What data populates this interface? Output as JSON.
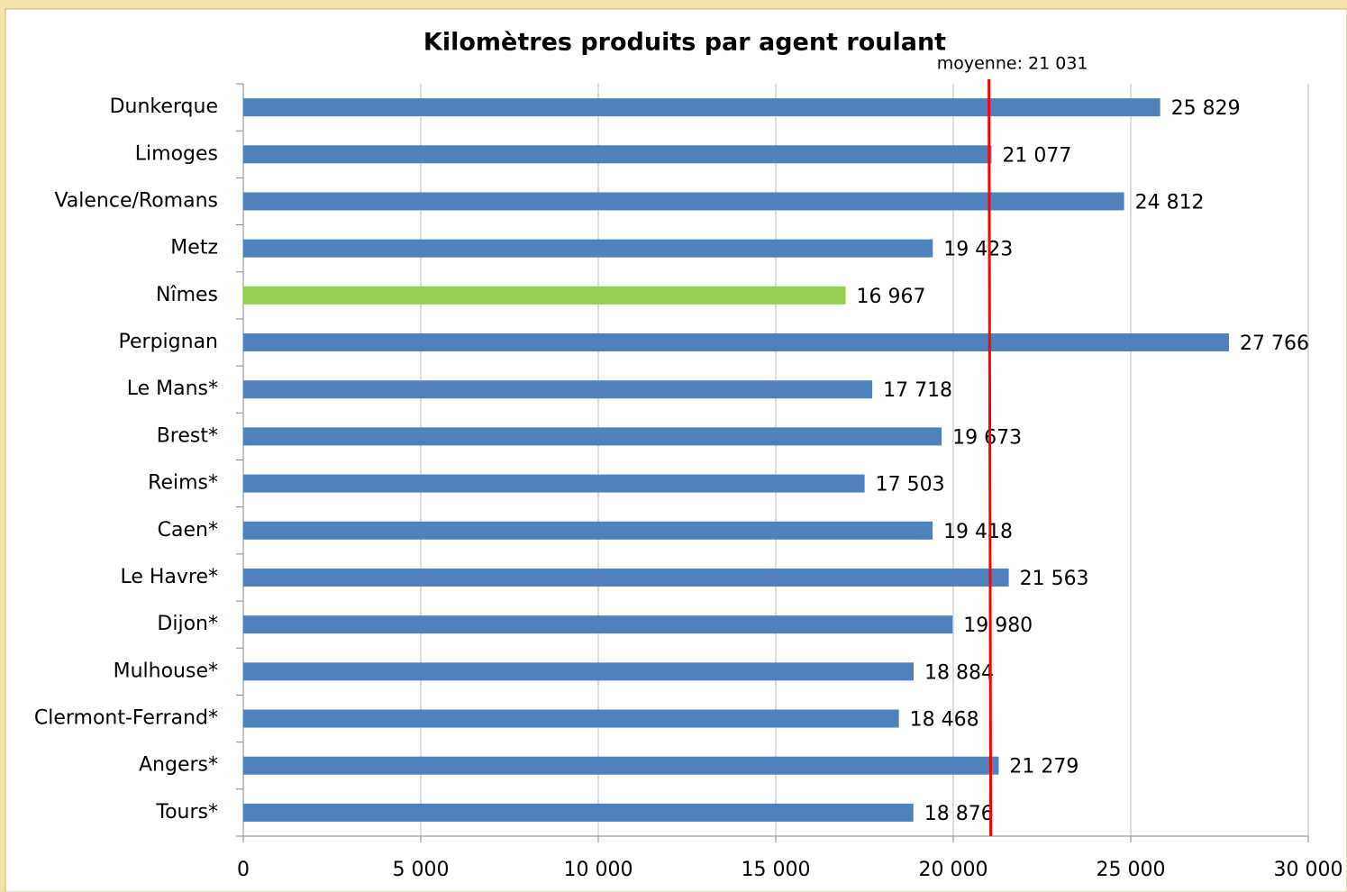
{
  "chart_data": {
    "type": "bar",
    "orientation": "horizontal",
    "title": "Kilomètres produits par agent roulant",
    "categories": [
      "Dunkerque",
      "Limoges",
      "Valence/Romans",
      "Metz",
      "Nîmes",
      "Perpignan",
      "Le Mans*",
      "Brest*",
      "Reims*",
      "Caen*",
      "Le Havre*",
      "Dijon*",
      "Mulhouse*",
      "Clermont-Ferrand*",
      "Angers*",
      "Tours*"
    ],
    "values": [
      25829,
      21077,
      24812,
      19423,
      16967,
      27766,
      17718,
      19673,
      17503,
      19418,
      21563,
      19980,
      18884,
      18468,
      21279,
      18876
    ],
    "value_labels": [
      "25 829",
      "21 077",
      "24 812",
      "19 423",
      "16 967",
      "27 766",
      "17 718",
      "19 673",
      "17 503",
      "19 418",
      "21 563",
      "19 980",
      "18 884",
      "18 468",
      "21 279",
      "18 876"
    ],
    "colors": [
      "#4f81bd",
      "#4f81bd",
      "#4f81bd",
      "#4f81bd",
      "#92d050",
      "#4f81bd",
      "#4f81bd",
      "#4f81bd",
      "#4f81bd",
      "#4f81bd",
      "#4f81bd",
      "#4f81bd",
      "#4f81bd",
      "#4f81bd",
      "#4f81bd",
      "#4f81bd"
    ],
    "xlim": [
      0,
      30000
    ],
    "xticks": [
      0,
      {
        "value": 5000,
        "label": "5 000"
      },
      {
        "value": 10000,
        "label": "10 000"
      },
      {
        "value": 15000,
        "label": "15 000"
      },
      {
        "value": 20000,
        "label": "20 000"
      },
      {
        "value": 25000,
        "label": "25 000"
      },
      {
        "value": 30000,
        "label": "30 000"
      }
    ],
    "grid": true,
    "reference_line": {
      "value": 21031,
      "label": "moyenne: 21 031",
      "color": "#ff0000"
    }
  }
}
